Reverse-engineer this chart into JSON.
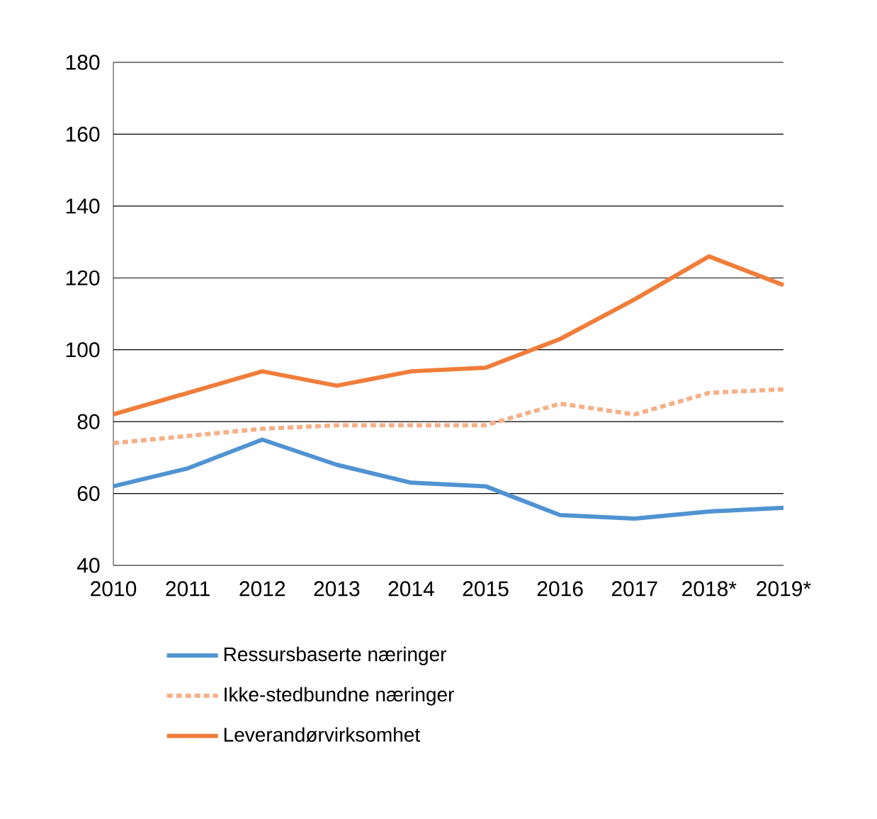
{
  "chart_data": {
    "type": "line",
    "categories": [
      "2010",
      "2011",
      "2012",
      "2013",
      "2014",
      "2015",
      "2016",
      "2017",
      "2018*",
      "2019*"
    ],
    "series": [
      {
        "name": "Ressursbaserte næringer",
        "color": "#4f93d2",
        "line_style": "solid",
        "values": [
          62,
          67,
          75,
          68,
          63,
          62,
          54,
          53,
          55,
          56
        ]
      },
      {
        "name": "Ikke-stedbundne næringer",
        "color": "#f6b088",
        "line_style": "dashed",
        "values": [
          74,
          76,
          78,
          79,
          79,
          79,
          85,
          82,
          88,
          89
        ]
      },
      {
        "name": "Leverandørvirksomhet",
        "color": "#f07d3a",
        "line_style": "solid",
        "values": [
          82,
          88,
          94,
          90,
          94,
          95,
          103,
          114,
          126,
          118
        ]
      }
    ],
    "ylim": [
      40,
      180
    ],
    "yticks": [
      40,
      60,
      80,
      100,
      120,
      140,
      160,
      180
    ],
    "grid": "y",
    "legend": "bottom"
  }
}
